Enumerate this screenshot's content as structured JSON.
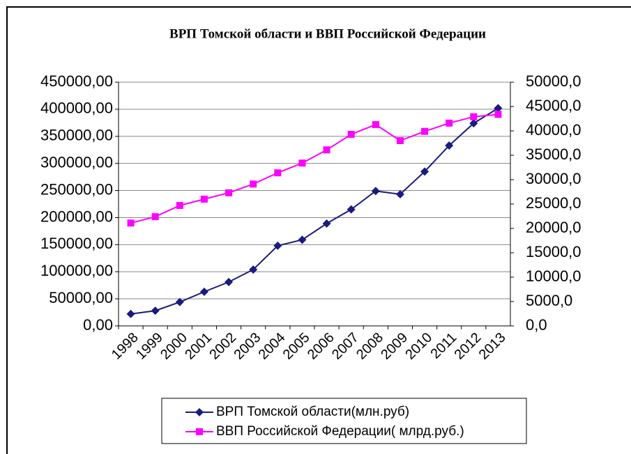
{
  "chart_data": {
    "type": "line",
    "title": "ВРП Томской области и ВВП Российской Федерации",
    "categories": [
      "1998",
      "1999",
      "2000",
      "2001",
      "2002",
      "2003",
      "2004",
      "2005",
      "2006",
      "2007",
      "2008",
      "2009",
      "2010",
      "2011",
      "2012",
      "2013"
    ],
    "series": [
      {
        "name": "ВРП Томской области(млн.руб)",
        "color": "#1a1a80",
        "marker": "diamond",
        "values": [
          22000,
          28000,
          44000,
          63000,
          81000,
          104000,
          148000,
          159000,
          189000,
          215000,
          249000,
          243000,
          285000,
          333000,
          374000,
          402000
        ]
      },
      {
        "name": "ВВП Российской Федерации( млрд.руб.)",
        "color": "#ff00ff",
        "marker": "square",
        "axis": "y2",
        "values": [
          21100,
          22400,
          24700,
          26000,
          27300,
          29100,
          31400,
          33400,
          36100,
          39300,
          41300,
          38000,
          39900,
          41600,
          42900,
          43400
        ]
      }
    ],
    "ylim": [
      0,
      450000
    ],
    "yticks": [
      {
        "value": 0,
        "label": "0,00"
      },
      {
        "value": 50000,
        "label": "50000,00"
      },
      {
        "value": 100000,
        "label": "100000,00"
      },
      {
        "value": 150000,
        "label": "150000,00"
      },
      {
        "value": 200000,
        "label": "200000,00"
      },
      {
        "value": 250000,
        "label": "250000,00"
      },
      {
        "value": 300000,
        "label": "300000,00"
      },
      {
        "value": 350000,
        "label": "350000,00"
      },
      {
        "value": 400000,
        "label": "400000,00"
      },
      {
        "value": 450000,
        "label": "450000,00"
      }
    ],
    "y2lim": [
      0,
      50000
    ],
    "y2ticks": [
      {
        "value": 0,
        "label": "0,0"
      },
      {
        "value": 5000,
        "label": "5000,0"
      },
      {
        "value": 10000,
        "label": "10000,0"
      },
      {
        "value": 15000,
        "label": "15000,0"
      },
      {
        "value": 20000,
        "label": "20000,0"
      },
      {
        "value": 25000,
        "label": "25000,0"
      },
      {
        "value": 30000,
        "label": "30000,0"
      },
      {
        "value": 35000,
        "label": "35000,0"
      },
      {
        "value": 40000,
        "label": "40000,0"
      },
      {
        "value": 45000,
        "label": "45000,0"
      },
      {
        "value": 50000,
        "label": "50000,0"
      }
    ],
    "grid": true,
    "legend": "bottom"
  }
}
